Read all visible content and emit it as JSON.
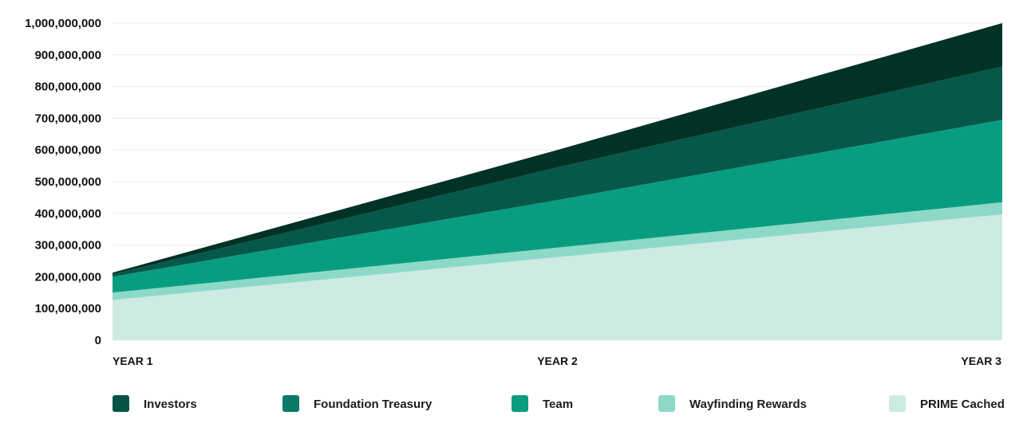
{
  "chart_data": {
    "type": "area",
    "stacked": true,
    "title": "",
    "xlabel": "",
    "ylabel": "",
    "categories": [
      "YEAR 1",
      "YEAR 2",
      "YEAR 3"
    ],
    "ylim": [
      0,
      1000000000
    ],
    "yticks": [
      0,
      100000000,
      200000000,
      300000000,
      400000000,
      500000000,
      600000000,
      700000000,
      800000000,
      900000000,
      1000000000
    ],
    "ytick_labels": [
      "0",
      "100,000,000",
      "200,000,000",
      "300,000,000",
      "400,000,000",
      "500,000,000",
      "600,000,000",
      "700,000,000",
      "800,000,000",
      "900,000,000",
      "1,000,000,000"
    ],
    "grid": true,
    "legend_position": "bottom",
    "series": [
      {
        "name": "PRIME Cached",
        "color": "#cdebe3",
        "values": [
          127000000,
          262000000,
          397000000
        ]
      },
      {
        "name": "Wayfinding Rewards",
        "color": "#8dd9c7",
        "values": [
          23000000,
          30000000,
          38000000
        ]
      },
      {
        "name": "Team",
        "color": "#099d80",
        "values": [
          50000000,
          150000000,
          260000000
        ]
      },
      {
        "name": "Foundation Treasury",
        "color": "#06584a",
        "values": [
          8000000,
          103000000,
          168000000
        ]
      },
      {
        "name": "Investors",
        "color": "#023126",
        "values": [
          5000000,
          55000000,
          137000000
        ]
      }
    ],
    "legend_order": [
      "Investors",
      "Foundation Treasury",
      "Team",
      "Wayfinding Rewards",
      "PRIME Cached"
    ],
    "legend_colors": [
      "#055345",
      "#0b7a66",
      "#0b9c80",
      "#8dd9c7",
      "#cdebe3"
    ]
  }
}
